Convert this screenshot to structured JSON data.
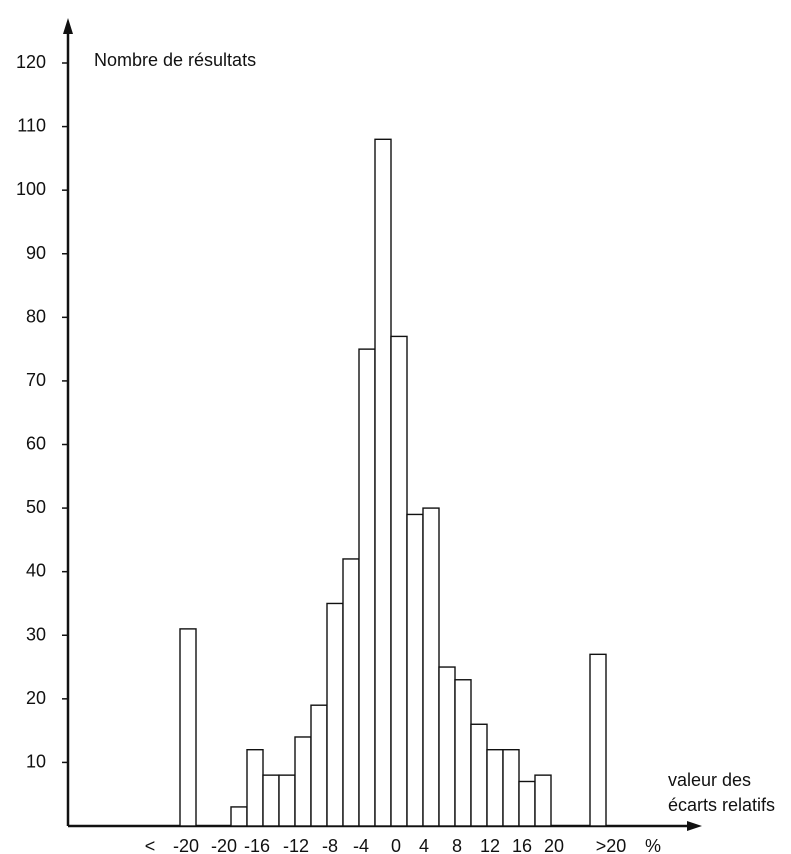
{
  "chart_data": {
    "type": "bar",
    "title": "",
    "ylabel": "Nombre de résultats",
    "xlabel": [
      "valeur des",
      "écarts relatifs"
    ],
    "x_unit": "%",
    "ylim": [
      0,
      120
    ],
    "y_ticks": [
      10,
      20,
      30,
      40,
      50,
      60,
      70,
      80,
      90,
      100,
      110,
      120
    ],
    "x_tick_labels": [
      "<",
      "-20",
      "-20",
      "-16",
      "-12",
      "-8",
      "-4",
      "0",
      "4",
      "8",
      "12",
      "16",
      "20",
      ">20"
    ],
    "categories": [
      "< -20",
      "-20 à -18",
      "-18 à -16",
      "-16 à -14",
      "-14 à -12",
      "-12 à -10",
      "-10 à -8",
      "-8 à -6",
      "-6 à -4",
      "-4 à -2",
      "-2 à 0",
      "0 à 2",
      "2 à 4",
      "4 à 6",
      "6 à 8",
      "8 à 10",
      "10 à 12",
      "12 à 14",
      "14 à 16",
      "16 à 18",
      "18 à 20",
      "> 20"
    ],
    "values": [
      31,
      3,
      12,
      8,
      8,
      14,
      19,
      35,
      42,
      75,
      108,
      77,
      49,
      50,
      25,
      23,
      16,
      12,
      12,
      7,
      8,
      27
    ],
    "grid": false,
    "bar_fill": "#ffffff",
    "bar_stroke": "#111111"
  }
}
